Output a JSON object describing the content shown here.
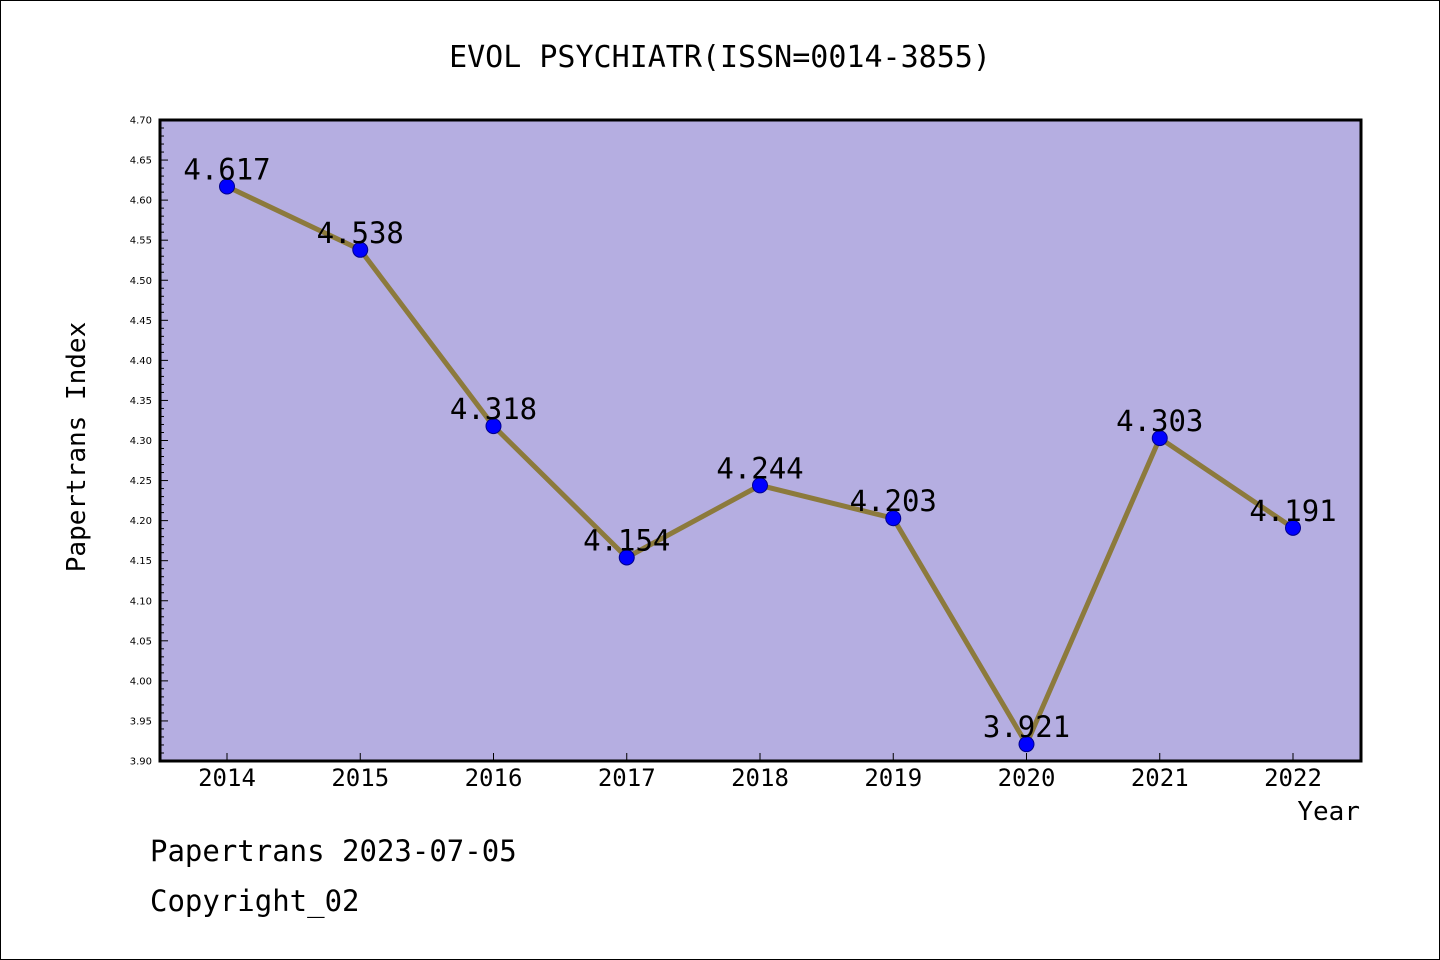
{
  "chart_data": {
    "type": "line",
    "title": "EVOL PSYCHIATR(ISSN=0014-3855)",
    "xlabel": "Year",
    "ylabel": "Papertrans Index",
    "categories": [
      "2014",
      "2015",
      "2016",
      "2017",
      "2018",
      "2019",
      "2020",
      "2021",
      "2022"
    ],
    "series": [
      {
        "values": [
          4.617,
          4.538,
          4.318,
          4.154,
          4.244,
          4.203,
          3.921,
          4.303,
          4.191
        ],
        "labels": [
          "4.617",
          "4.538",
          "4.318",
          "4.154",
          "4.244",
          "4.203",
          "3.921",
          "4.303",
          "4.191"
        ]
      }
    ],
    "ylim": [
      3.9,
      4.7
    ],
    "yticks": [
      "3.90",
      "3.95",
      "4.00",
      "4.05",
      "4.10",
      "4.15",
      "4.20",
      "4.25",
      "4.30",
      "4.35",
      "4.40",
      "4.45",
      "4.50",
      "4.55",
      "4.60",
      "4.65",
      "4.70"
    ],
    "grid": false,
    "colors": {
      "plot_background": "#b5aee1",
      "line": "#8c7a3c",
      "marker": "#0000ff"
    }
  },
  "footer": {
    "source": "Papertrans 2023-07-05",
    "copyright": "Copyright_02"
  }
}
